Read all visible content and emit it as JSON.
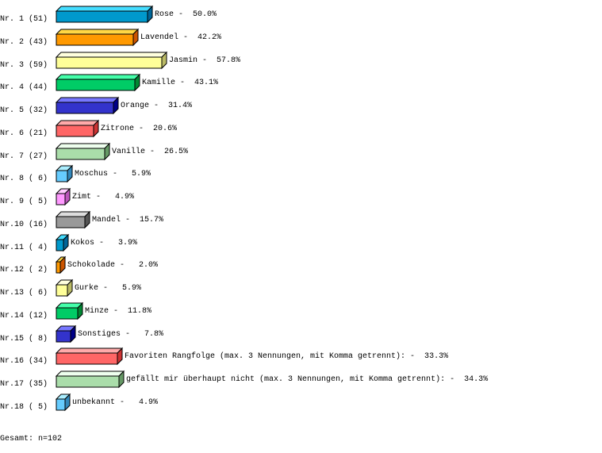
{
  "chart_data": {
    "type": "bar",
    "orientation": "horizontal",
    "style": "3d",
    "grid": false,
    "rows": [
      {
        "rank": "Nr. 1",
        "count": 51,
        "label": "Rose",
        "percent": "50.0%"
      },
      {
        "rank": "Nr. 2",
        "count": 43,
        "label": "Lavendel",
        "percent": "42.2%"
      },
      {
        "rank": "Nr. 3",
        "count": 59,
        "label": "Jasmin",
        "percent": "57.8%"
      },
      {
        "rank": "Nr. 4",
        "count": 44,
        "label": "Kamille",
        "percent": "43.1%"
      },
      {
        "rank": "Nr. 5",
        "count": 32,
        "label": "Orange",
        "percent": "31.4%"
      },
      {
        "rank": "Nr. 6",
        "count": 21,
        "label": "Zitrone",
        "percent": "20.6%"
      },
      {
        "rank": "Nr. 7",
        "count": 27,
        "label": "Vanille",
        "percent": "26.5%"
      },
      {
        "rank": "Nr. 8",
        "count": 6,
        "label": "Moschus",
        "percent": "5.9%"
      },
      {
        "rank": "Nr. 9",
        "count": 5,
        "label": "Zimt",
        "percent": "4.9%"
      },
      {
        "rank": "Nr.10",
        "count": 16,
        "label": "Mandel",
        "percent": "15.7%"
      },
      {
        "rank": "Nr.11",
        "count": 4,
        "label": "Kokos",
        "percent": "3.9%"
      },
      {
        "rank": "Nr.12",
        "count": 2,
        "label": "Schokolade",
        "percent": "2.0%"
      },
      {
        "rank": "Nr.13",
        "count": 6,
        "label": "Gurke",
        "percent": "5.9%"
      },
      {
        "rank": "Nr.14",
        "count": 12,
        "label": "Minze",
        "percent": "11.8%"
      },
      {
        "rank": "Nr.15",
        "count": 8,
        "label": "Sonstiges",
        "percent": "7.8%"
      },
      {
        "rank": "Nr.16",
        "count": 34,
        "label": "Favoriten Rangfolge (max. 3 Nennungen, mit Komma getrennt):",
        "percent": "33.3%"
      },
      {
        "rank": "Nr.17",
        "count": 35,
        "label": "gefällt mir überhaupt nicht (max. 3 Nennungen, mit Komma getrennt):",
        "percent": "34.3%"
      },
      {
        "rank": "Nr.18",
        "count": 5,
        "label": "unbekannt",
        "percent": "4.9%"
      }
    ],
    "palette": [
      {
        "front": "#0099cc",
        "top": "#44ddff",
        "side": "#006699"
      },
      {
        "front": "#ff9900",
        "top": "#ffd744",
        "side": "#cc5500"
      },
      {
        "front": "#ffff99",
        "top": "#ffffdd",
        "side": "#bbbb66"
      },
      {
        "front": "#00cc66",
        "top": "#44ffaa",
        "side": "#008833"
      },
      {
        "front": "#3333cc",
        "top": "#7777ff",
        "side": "#000088"
      },
      {
        "front": "#ff6666",
        "top": "#ffaaaa",
        "side": "#cc3333"
      },
      {
        "front": "#aaddaa",
        "top": "#eeffee",
        "side": "#669966"
      },
      {
        "front": "#66ccff",
        "top": "#aaeeff",
        "side": "#3388bb"
      },
      {
        "front": "#ff99ff",
        "top": "#ffccff",
        "side": "#bb55bb"
      },
      {
        "front": "#999999",
        "top": "#dddddd",
        "side": "#555555"
      }
    ],
    "total": "Gesamt: n=102"
  }
}
